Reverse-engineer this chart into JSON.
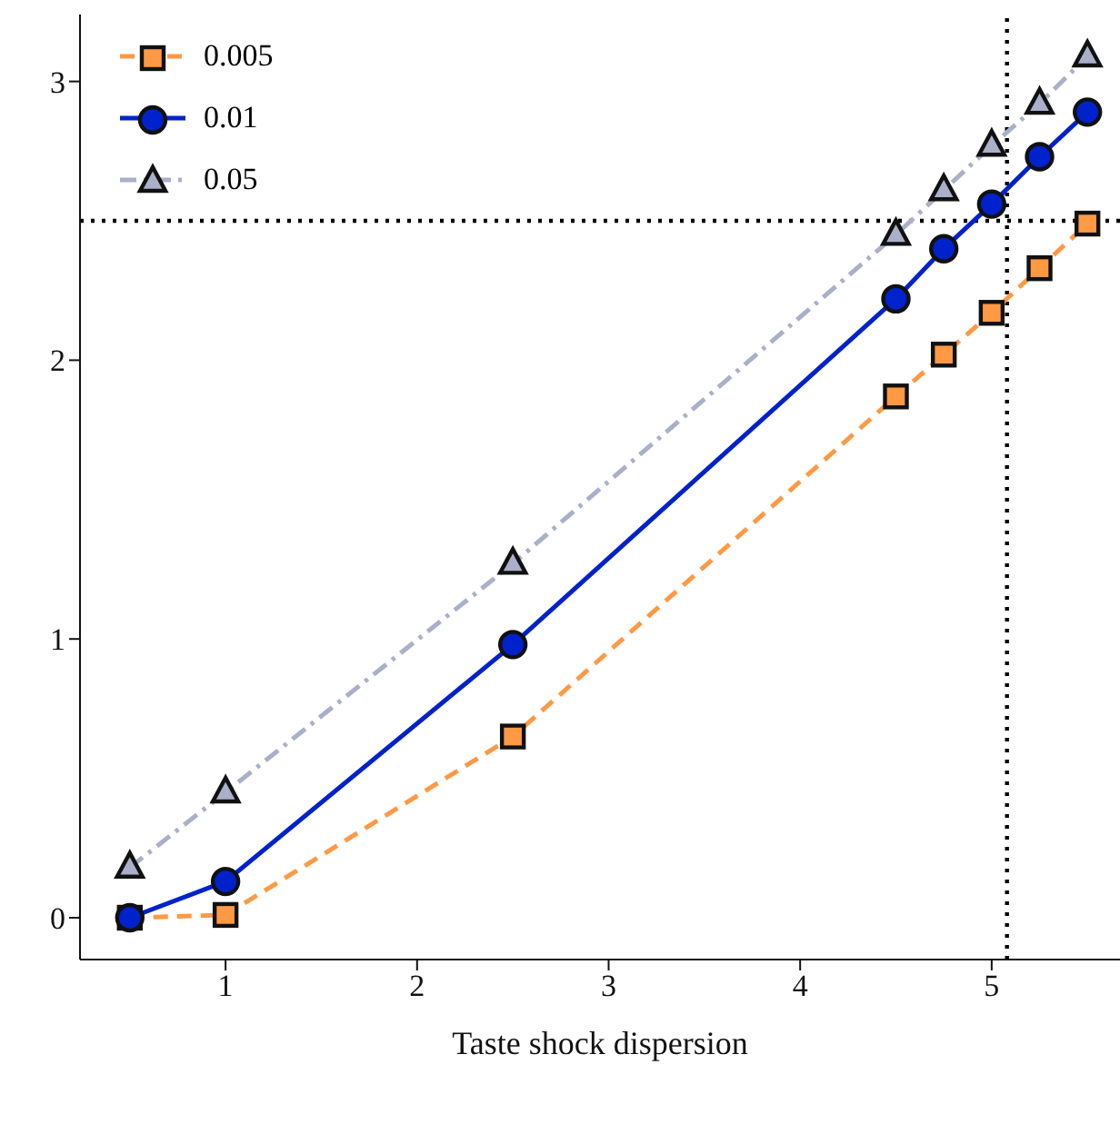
{
  "chart_data": {
    "type": "line",
    "xlabel": "Taste shock dispersion",
    "x": [
      0.5,
      1,
      2.5,
      4.5,
      4.75,
      5,
      5.25,
      5.5
    ],
    "series": [
      {
        "name": "0.005",
        "color": "#ff9944",
        "marker": "square",
        "line_style": "dashed",
        "values": [
          0.0,
          0.01,
          0.65,
          1.87,
          2.02,
          2.17,
          2.33,
          2.49
        ]
      },
      {
        "name": "0.01",
        "color": "#0022cc",
        "marker": "circle",
        "line_style": "solid",
        "values": [
          0.0,
          0.13,
          0.98,
          2.22,
          2.4,
          2.56,
          2.73,
          2.89
        ]
      },
      {
        "name": "0.05",
        "color": "#aab0c8",
        "marker": "triangle",
        "line_style": "dashdot",
        "values": [
          0.18,
          0.45,
          1.27,
          2.45,
          2.61,
          2.77,
          2.92,
          3.09
        ]
      }
    ],
    "xlim": [
      0.24,
      5.67
    ],
    "xticks": [
      1,
      2,
      3,
      4,
      5
    ],
    "ylim": [
      -0.15,
      3.24
    ],
    "yticks": [
      0,
      1,
      2,
      3
    ],
    "ref_lines": [
      {
        "axis": "y",
        "value": 2.5,
        "color": "#000000",
        "line_style": "dotted"
      },
      {
        "axis": "x",
        "value": 5.08,
        "color": "#000000",
        "line_style": "dotted"
      }
    ],
    "grid": false,
    "legend": "top left"
  }
}
